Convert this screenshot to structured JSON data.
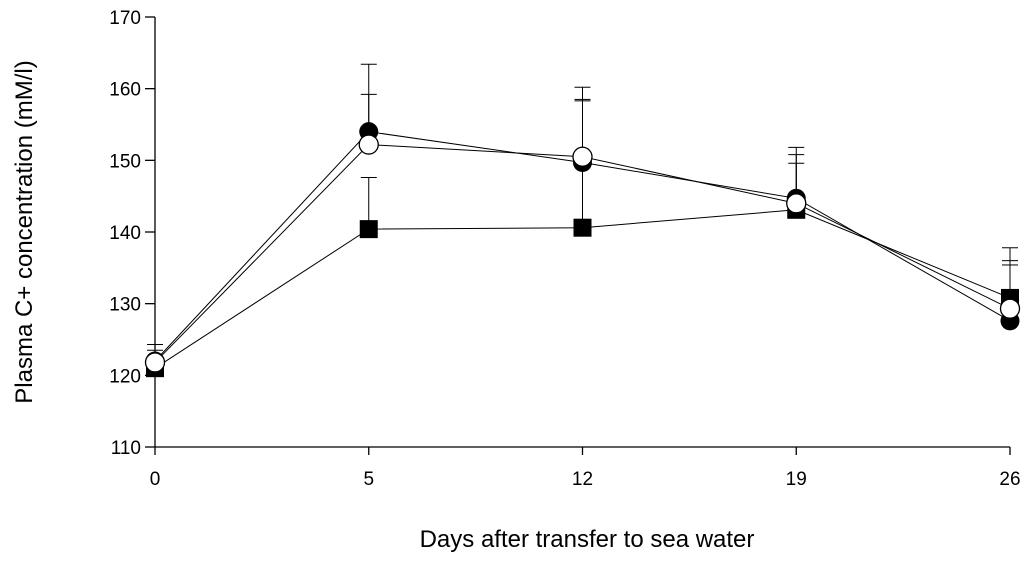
{
  "chart_data": {
    "type": "line",
    "title": "",
    "xlabel": "Days after transfer to sea water",
    "ylabel": "Plasma C+ concentration (mM/l)",
    "categories": [
      "0",
      "5",
      "12",
      "19",
      "26"
    ],
    "ylim": [
      110,
      170
    ],
    "yticks": [
      110,
      120,
      130,
      140,
      150,
      160,
      170
    ],
    "grid": false,
    "legend": "none",
    "series": [
      {
        "marker": "square-filled",
        "values": [
          121,
          140.4,
          140.6,
          143.1,
          130.8
        ],
        "error_upper": [
          122.5,
          147.6,
          158.5,
          149.6,
          136.0
        ]
      },
      {
        "marker": "circle-filled",
        "values": [
          122,
          154.0,
          149.7,
          144.7,
          127.6
        ],
        "error_upper": [
          124.3,
          159.2,
          158.3,
          150.8,
          137.8
        ]
      },
      {
        "marker": "circle-open",
        "values": [
          121.8,
          152.2,
          150.5,
          144.0,
          129.3
        ],
        "error_upper": [
          123.5,
          163.4,
          160.2,
          151.8,
          135.4
        ]
      }
    ]
  }
}
